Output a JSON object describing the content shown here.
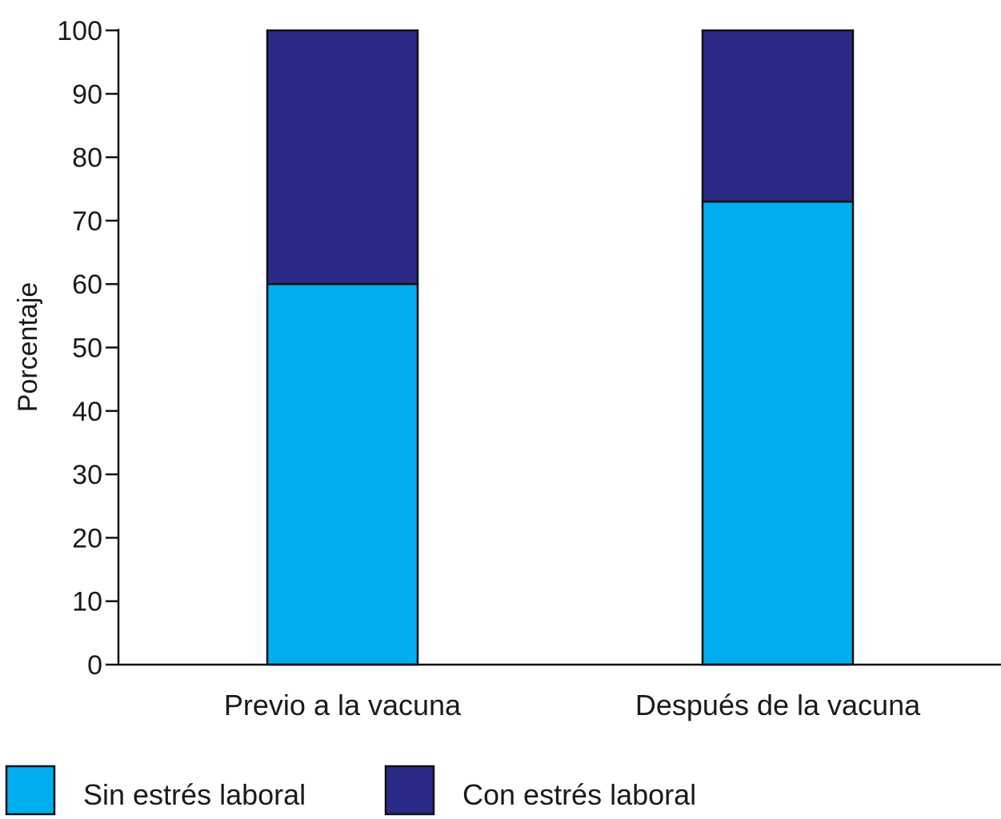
{
  "chart_data": {
    "type": "bar",
    "stacked": true,
    "categories": [
      "Previo a la vacuna",
      "Después de la vacuna"
    ],
    "series": [
      {
        "name": "Sin estrés laboral",
        "values": [
          60,
          73
        ],
        "color": "#00aeef"
      },
      {
        "name": "Con estrés laboral",
        "values": [
          40,
          27
        ],
        "color": "#2b2a86"
      }
    ],
    "title": "",
    "xlabel": "",
    "ylabel": "Porcentaje",
    "ylim": [
      0,
      100
    ],
    "yticks": [
      0,
      10,
      20,
      30,
      40,
      50,
      60,
      70,
      80,
      90,
      100
    ],
    "grid": false,
    "legend_position": "bottom-left"
  }
}
